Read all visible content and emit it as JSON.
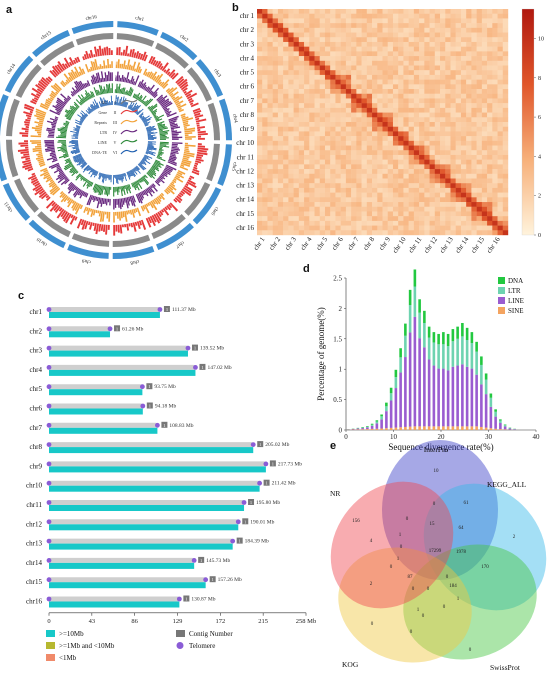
{
  "panel_labels": {
    "a": "a",
    "b": "b",
    "c": "c",
    "d": "d",
    "e": "e"
  },
  "chart_data": [
    {
      "panel": "a",
      "type": "circos",
      "chromosomes": [
        "chr1",
        "chr2",
        "chr3",
        "chr4",
        "chr5",
        "chr6",
        "chr7",
        "chr8",
        "chr9",
        "chr10",
        "chr11",
        "chr12",
        "chr13",
        "chr14",
        "chr15",
        "chr16"
      ],
      "tracks": [
        "GC",
        "Gene",
        "Repeats",
        "LTR",
        "LINE",
        "DNA-TE"
      ],
      "track_ids": [
        "I",
        "II",
        "III",
        "IV",
        "V",
        "VI"
      ],
      "track_colors": [
        "#7a7a7a",
        "#e53a3a",
        "#f2a23a",
        "#6a2a80",
        "#2e8a3a",
        "#1f5fb0"
      ]
    },
    {
      "panel": "b",
      "type": "heatmap",
      "labels": [
        "chr 1",
        "chr 2",
        "chr 3",
        "chr 4",
        "chr 5",
        "chr 6",
        "chr 7",
        "chr 8",
        "chr 9",
        "chr 10",
        "chr 11",
        "chr 12",
        "chr 13",
        "chr 14",
        "chr 15",
        "chr 16"
      ],
      "colorbar_ticks": [
        "0",
        "2",
        "4",
        "6",
        "8",
        "10"
      ],
      "color_range": [
        0,
        11.5
      ],
      "colors": [
        "#fff3dc",
        "#f7b07a",
        "#e0562a",
        "#b0180f"
      ]
    },
    {
      "panel": "c",
      "type": "bar",
      "categories": [
        "chr1",
        "chr2",
        "chr3",
        "chr4",
        "chr5",
        "chr6",
        "chr7",
        "chr8",
        "chr9",
        "chr10",
        "chr11",
        "chr12",
        "chr13",
        "chr14",
        "chr15",
        "chr16"
      ],
      "values": [
        111.37,
        61.26,
        139.52,
        147.02,
        93.75,
        94.18,
        108.83,
        205.02,
        217.73,
        211.42,
        195.8,
        190.01,
        184.39,
        145.73,
        157.26,
        130.87
      ],
      "value_labels": [
        "111.37 Mb",
        "61.26 Mb",
        "139.52 Mb",
        "147.02 Mb",
        "93.75 Mb",
        "94.18 Mb",
        "108.83 Mb",
        "205.02 Mb",
        "217.73 Mb",
        "211.42 Mb",
        "195.80 Mb",
        "190.01 Mb",
        "184.39 Mb",
        "145.73 Mb",
        "157.26 Mb",
        "130.87 Mb"
      ],
      "contig_numbers": [
        "1",
        "1",
        "1",
        "1",
        "1",
        "1",
        "1",
        "1",
        "1",
        "1",
        "1",
        "1",
        "1",
        "1",
        "1",
        "1"
      ],
      "xticks": [
        "0",
        "43",
        "86",
        "129",
        "172",
        "215",
        "258 Mb"
      ],
      "xlim": [
        0,
        258
      ],
      "legend": [
        ">=10Mb",
        ">=1Mb and <10Mb",
        "<1Mb",
        "Contig Number",
        "Telomere"
      ],
      "legend_colors": [
        "#17c8c8",
        "#b6b830",
        "#f08a6a",
        "#777777",
        "#8a5cd6"
      ]
    },
    {
      "panel": "d",
      "type": "bar",
      "xlabel": "Sequence divergence rate(%)",
      "ylabel": "Percentage of genome(%)",
      "xlim": [
        0,
        40
      ],
      "ylim": [
        0,
        2.5
      ],
      "xticks": [
        "0",
        "10",
        "20",
        "30",
        "40"
      ],
      "yticks": [
        "0",
        "0.5",
        "1",
        "1.5",
        "2",
        "2.5"
      ],
      "x": [
        0,
        1,
        2,
        3,
        4,
        5,
        6,
        7,
        8,
        9,
        10,
        11,
        12,
        13,
        14,
        15,
        16,
        17,
        18,
        19,
        20,
        21,
        22,
        23,
        24,
        25,
        26,
        27,
        28,
        29,
        30,
        31,
        32,
        33,
        34,
        35
      ],
      "series": [
        {
          "name": "SINE",
          "color": "#f4a460",
          "values": [
            0.005,
            0.008,
            0.01,
            0.012,
            0.015,
            0.018,
            0.02,
            0.025,
            0.03,
            0.035,
            0.04,
            0.045,
            0.05,
            0.055,
            0.06,
            0.06,
            0.06,
            0.06,
            0.06,
            0.06,
            0.06,
            0.06,
            0.06,
            0.06,
            0.06,
            0.06,
            0.06,
            0.06,
            0.05,
            0.04,
            0.03,
            0.02,
            0.015,
            0.01,
            0.005,
            0.003
          ]
        },
        {
          "name": "LINE",
          "color": "#9a5cd0",
          "values": [
            0.005,
            0.01,
            0.015,
            0.02,
            0.03,
            0.05,
            0.09,
            0.15,
            0.28,
            0.45,
            0.65,
            0.9,
            1.15,
            1.55,
            1.8,
            1.45,
            1.3,
            1.1,
            1.0,
            0.95,
            0.95,
            0.92,
            0.98,
            1.0,
            1.02,
            0.98,
            0.95,
            0.85,
            0.7,
            0.55,
            0.35,
            0.2,
            0.1,
            0.05,
            0.02,
            0.01
          ]
        },
        {
          "name": "LTR",
          "color": "#6ed3b0",
          "values": [
            0.002,
            0.003,
            0.005,
            0.008,
            0.01,
            0.02,
            0.03,
            0.05,
            0.08,
            0.12,
            0.18,
            0.25,
            0.35,
            0.45,
            0.5,
            0.42,
            0.4,
            0.36,
            0.38,
            0.4,
            0.4,
            0.4,
            0.42,
            0.44,
            0.46,
            0.44,
            0.42,
            0.38,
            0.32,
            0.24,
            0.15,
            0.08,
            0.04,
            0.02,
            0.01,
            0.005
          ]
        },
        {
          "name": "DNA",
          "color": "#22c840",
          "values": [
            0.002,
            0.003,
            0.005,
            0.008,
            0.01,
            0.015,
            0.02,
            0.03,
            0.06,
            0.09,
            0.12,
            0.15,
            0.2,
            0.25,
            0.28,
            0.22,
            0.2,
            0.18,
            0.17,
            0.17,
            0.2,
            0.2,
            0.2,
            0.2,
            0.22,
            0.2,
            0.18,
            0.16,
            0.14,
            0.1,
            0.07,
            0.04,
            0.02,
            0.01,
            0.005,
            0.003
          ]
        }
      ]
    },
    {
      "panel": "e",
      "type": "venn",
      "sets": [
        "InterPro",
        "KEGG_ALL",
        "SwissProt",
        "KOG",
        "NR"
      ],
      "set_colors": [
        "#3a3ec8",
        "#35b8e8",
        "#44c640",
        "#f0c840",
        "#f04850"
      ],
      "region_counts": [
        "10",
        "2",
        "0",
        "0",
        "156",
        "61",
        "170",
        "1",
        "15",
        "64",
        "0",
        "17299",
        "1978",
        "184",
        "0",
        "0",
        "0",
        "0",
        "0",
        "1",
        "0",
        "2",
        "0",
        "87",
        "0",
        "1",
        "0",
        "1",
        "4",
        "0"
      ]
    }
  ]
}
